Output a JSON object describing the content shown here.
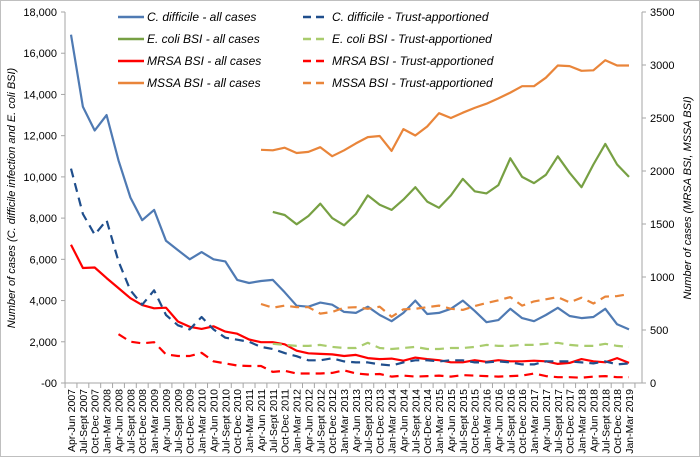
{
  "chart_data": {
    "type": "line",
    "title": "",
    "xlabel": "",
    "ylabel": "Number of cases (C. difficile infection and E. coli BSI)",
    "y2label": "Number of cases (MRSA BSI, MSSA BSI)",
    "ylim": [
      0,
      18000
    ],
    "y2lim": [
      0,
      3500
    ],
    "yticks": [
      0,
      2000,
      4000,
      6000,
      8000,
      10000,
      12000,
      14000,
      16000,
      18000
    ],
    "ytick_labels": [
      "-00",
      "2,000",
      "4,000",
      "6,000",
      "8,000",
      "10,000",
      "12,000",
      "14,000",
      "16,000",
      "18,000"
    ],
    "y2ticks": [
      0,
      500,
      1000,
      1500,
      2000,
      2500,
      3000,
      3500
    ],
    "y2tick_labels": [
      "0",
      "500",
      "1000",
      "1500",
      "2000",
      "2500",
      "3000",
      "3500"
    ],
    "grid": false,
    "legend_position": "top",
    "categories": [
      "Apr-Jun 2007",
      "Jul-Sept 2007",
      "Oct-Dec 2007",
      "Jan-Mar 2008",
      "Apr-Jun 2008",
      "Jul-Sept 2008",
      "Oct-Dec 2008",
      "Jan-Mar 2009",
      "Apr-Jun 2009",
      "Jul-Sept 2009",
      "Oct-Dec 2009",
      "Jan-Mar 2010",
      "Apr-Jun 2010",
      "Jul-Sept 2010",
      "Oct-Dec 2010",
      "Jan-Mar 2011",
      "Apr-Jun 2011",
      "Jul-Sept 2011",
      "Oct-Dec 2011",
      "Jan-Mar 2012",
      "Apr-Jun 2012",
      "Jul-Sept 2012",
      "Oct-Dec 2012",
      "Jan-Mar 2013",
      "Apr-Jun 2013",
      "Jul-Sept 2013",
      "Oct-Dec 2013",
      "Jan-Mar 2014",
      "Apr-Jun 2014",
      "Jul-Sept 2014",
      "Oct-Dec 2014",
      "Jan-Mar 2015",
      "Apr-Jun 2015",
      "Jul-Sept 2015",
      "Oct-Dec 2015",
      "Jan-Mar 2016",
      "Apr-Jun 2016",
      "Jul-Sept 2016",
      "Oct-Dec 2016",
      "Jan-Mar 2017",
      "Apr-Jun 2017",
      "Jul-Sept 2017",
      "Oct-Dec 2017",
      "Jan-Mar 2018",
      "Apr-Jun 2018",
      "Jul-Sept 2018",
      "Oct-Dec 2018",
      "Jan-Mar 2019"
    ],
    "series": [
      {
        "name": "C. difficile - all cases",
        "axis": "left",
        "color": "#4f7ab3",
        "dash": false,
        "values": [
          16900,
          13400,
          12250,
          13000,
          10800,
          9000,
          7900,
          8400,
          6900,
          6450,
          6000,
          6350,
          6000,
          5900,
          5000,
          4850,
          4950,
          5000,
          4400,
          3750,
          3700,
          3900,
          3800,
          3450,
          3400,
          3700,
          3300,
          3000,
          3400,
          4000,
          3350,
          3400,
          3600,
          4000,
          3500,
          2950,
          3050,
          3600,
          3150,
          3000,
          3300,
          3650,
          3250,
          3150,
          3200,
          3600,
          2850,
          2600
        ]
      },
      {
        "name": "E. coli BSI - all cases",
        "axis": "left",
        "color": "#77a043",
        "dash": false,
        "values": [
          null,
          null,
          null,
          null,
          null,
          null,
          null,
          null,
          null,
          null,
          null,
          null,
          null,
          null,
          null,
          null,
          null,
          8300,
          8150,
          7700,
          8100,
          8700,
          8000,
          7650,
          8200,
          9100,
          8650,
          8400,
          8900,
          9500,
          8800,
          8500,
          9100,
          9900,
          9300,
          9200,
          9600,
          10900,
          10000,
          9700,
          10100,
          11000,
          10200,
          9500,
          10600,
          11600,
          10600,
          10000
        ]
      },
      {
        "name": "MRSA BSI - all cases",
        "axis": "right",
        "color": "#ff0000",
        "dash": false,
        "values": [
          1305,
          1085,
          1090,
          990,
          895,
          800,
          735,
          705,
          710,
          580,
          530,
          510,
          535,
          485,
          465,
          410,
          385,
          385,
          365,
          305,
          280,
          275,
          270,
          255,
          265,
          235,
          225,
          230,
          210,
          240,
          225,
          215,
          195,
          195,
          215,
          200,
          215,
          205,
          205,
          210,
          205,
          180,
          190,
          225,
          205,
          195,
          235,
          190
        ]
      },
      {
        "name": "MSSA BSI - all cases",
        "axis": "right",
        "color": "#e9853a",
        "dash": false,
        "values": [
          null,
          null,
          null,
          null,
          null,
          null,
          null,
          null,
          null,
          null,
          null,
          null,
          null,
          null,
          null,
          null,
          2200,
          2195,
          2220,
          2170,
          2180,
          2225,
          2140,
          2195,
          2260,
          2320,
          2330,
          2190,
          2395,
          2335,
          2420,
          2545,
          2500,
          2550,
          2595,
          2635,
          2685,
          2740,
          2800,
          2800,
          2880,
          2995,
          2990,
          2945,
          2950,
          3045,
          2995,
          2995
        ]
      },
      {
        "name": "C. difficile - Trust-apportioned",
        "axis": "left",
        "color": "#1f4e8c",
        "dash": true,
        "values": [
          10400,
          8200,
          7200,
          7900,
          5900,
          4500,
          3800,
          4500,
          3300,
          2800,
          2600,
          3200,
          2600,
          2200,
          2100,
          2000,
          1750,
          1650,
          1450,
          1300,
          1100,
          1100,
          1200,
          1050,
          1000,
          1000,
          900,
          850,
          1000,
          1100,
          1100,
          1050,
          1100,
          1100,
          1000,
          1000,
          1050,
          1000,
          900,
          900,
          1050,
          1050,
          1050,
          1000,
          950,
          1050,
          900,
          950
        ]
      },
      {
        "name": "E. coli BSI - Trust-apportioned",
        "axis": "left",
        "color": "#a9cc6d",
        "dash": true,
        "values": [
          null,
          null,
          null,
          null,
          null,
          null,
          null,
          null,
          null,
          null,
          null,
          null,
          null,
          null,
          null,
          null,
          null,
          1900,
          1850,
          1800,
          1800,
          1850,
          1750,
          1700,
          1700,
          1950,
          1700,
          1650,
          1700,
          1750,
          1650,
          1650,
          1700,
          1700,
          1750,
          1850,
          1800,
          1800,
          1850,
          1850,
          1900,
          1950,
          1850,
          1800,
          1800,
          1900,
          1800,
          1750
        ]
      },
      {
        "name": "MRSA BSI - Trust-apportioned",
        "axis": "right",
        "color": "#ff0000",
        "dash": true,
        "values": [
          null,
          null,
          null,
          null,
          460,
          390,
          375,
          385,
          270,
          255,
          255,
          285,
          205,
          185,
          165,
          160,
          160,
          105,
          115,
          90,
          90,
          90,
          95,
          120,
          90,
          80,
          85,
          60,
          70,
          60,
          65,
          70,
          60,
          75,
          70,
          65,
          60,
          65,
          70,
          90,
          65,
          55,
          55,
          50,
          60,
          65,
          55,
          55
        ]
      },
      {
        "name": "MSSA BSI - Trust-apportioned",
        "axis": "right",
        "color": "#e9853a",
        "dash": true,
        "values": [
          null,
          null,
          null,
          null,
          null,
          null,
          null,
          null,
          null,
          null,
          null,
          null,
          null,
          null,
          null,
          null,
          745,
          710,
          730,
          715,
          715,
          655,
          670,
          710,
          715,
          700,
          720,
          625,
          695,
          700,
          715,
          730,
          700,
          690,
          725,
          755,
          780,
          810,
          730,
          770,
          790,
          810,
          760,
          805,
          750,
          815,
          820,
          840
        ]
      }
    ]
  }
}
